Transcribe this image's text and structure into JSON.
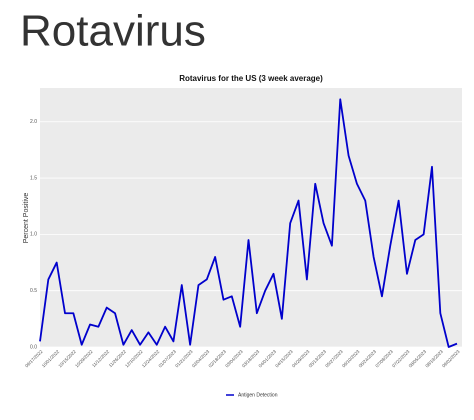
{
  "heading": "Rotavirus",
  "chart_data": {
    "type": "line",
    "title": "Rotavirus for the US (3 week average)",
    "y_label": "Percent Positive",
    "categories": [
      "09/17/2022",
      null,
      "10/01/2022",
      null,
      "10/15/2022",
      null,
      "10/29/2022",
      null,
      "11/12/2022",
      null,
      "11/26/2022",
      null,
      "12/10/2022",
      null,
      "12/24/2022",
      null,
      "01/07/2023",
      null,
      "01/21/2023",
      null,
      "02/04/2023",
      null,
      "02/18/2023",
      null,
      "03/04/2023",
      null,
      "03/18/2023",
      null,
      "04/01/2023",
      null,
      "04/15/2023",
      null,
      "04/29/2023",
      null,
      "05/13/2023",
      null,
      "05/27/2023",
      null,
      "06/10/2023",
      null,
      "06/24/2023",
      null,
      "07/08/2023",
      null,
      "07/22/2023",
      null,
      "08/05/2023",
      null,
      "08/19/2023",
      null,
      "09/02/2023"
    ],
    "series": [
      {
        "name": "Antigen Detection",
        "color": "#0000cc",
        "values": [
          0.05,
          0.6,
          0.75,
          0.3,
          0.3,
          0.02,
          0.2,
          0.18,
          0.35,
          0.3,
          0.02,
          0.15,
          0.02,
          0.13,
          0.02,
          0.18,
          0.05,
          0.55,
          0.02,
          0.55,
          0.6,
          0.8,
          0.42,
          0.45,
          0.18,
          0.95,
          0.3,
          0.5,
          0.65,
          0.25,
          1.1,
          1.3,
          0.6,
          1.45,
          1.1,
          0.9,
          2.2,
          1.7,
          1.45,
          1.3,
          0.8,
          0.45,
          0.9,
          1.3,
          0.65,
          0.95,
          1.0,
          1.6,
          0.3,
          0.0,
          0.03
        ]
      }
    ],
    "ylim": [
      0,
      2.3
    ],
    "yticks": [
      {
        "value": 0,
        "label": "0.0"
      },
      0.5,
      {
        "value": 1,
        "label": "1.0"
      },
      1.5,
      {
        "value": 2,
        "label": "2.0"
      }
    ],
    "grid": true,
    "legend": "bottom"
  }
}
